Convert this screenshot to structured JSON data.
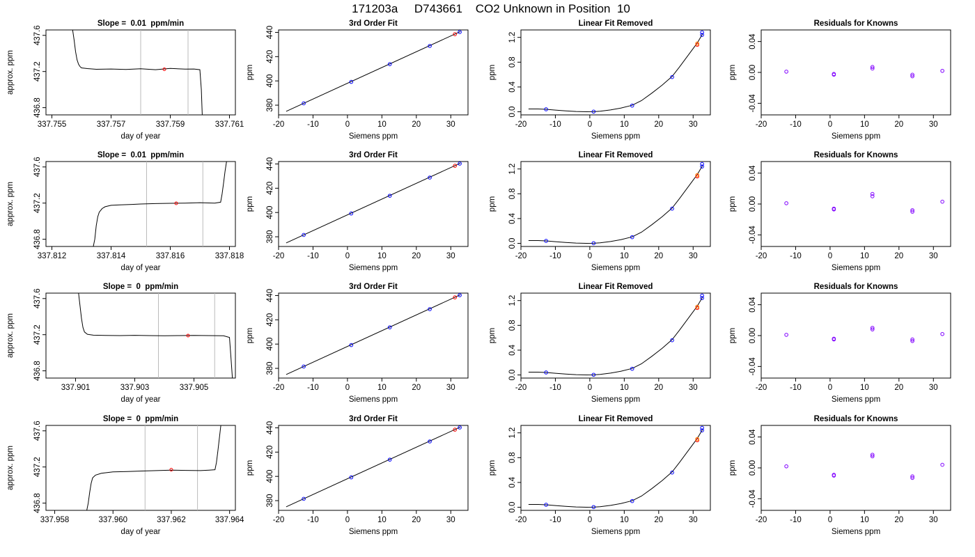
{
  "figure_title": "171203a     D743661    CO2 Unknown in Position  10",
  "colors": {
    "axis": "#000000",
    "known_point": "#0000ff",
    "unknown_point": "#ff0000",
    "alt_point": "#ff8c00",
    "residual_point": "#8000ff",
    "marker_line": "#bbbbbb"
  },
  "chart_data": [
    {
      "type": "line",
      "title": "Slope =  0.01  ppm/min",
      "xlabel": "day of year",
      "ylabel": "approx. ppm",
      "xlim": [
        337.7548,
        337.7612
      ],
      "ylim": [
        436.72,
        437.66
      ],
      "xticks": [
        337.755,
        337.757,
        337.759,
        337.761
      ],
      "xtick_labels": [
        "337.755",
        "337.757",
        "337.759",
        "337.761"
      ],
      "yticks": [
        436.8,
        437.2,
        437.6
      ],
      "ytick_labels": [
        "436.8",
        "437.2",
        "437.6"
      ],
      "markers": [
        337.758,
        337.7596
      ],
      "mid_x": 337.7588,
      "mid_y": 437.225,
      "series": [
        {
          "x": [
            337.7557,
            337.75575,
            337.7558,
            337.75585,
            337.7559,
            337.75595,
            337.756,
            337.7562,
            337.7565,
            337.757,
            337.7575,
            337.758,
            337.7585,
            337.759,
            337.7595,
            337.7598,
            337.76,
            337.76005,
            337.76008
          ],
          "y": [
            437.66,
            437.55,
            437.42,
            437.33,
            437.28,
            437.255,
            437.24,
            437.232,
            437.225,
            437.228,
            437.222,
            437.23,
            437.22,
            437.234,
            437.226,
            437.228,
            437.22,
            437.0,
            436.72
          ]
        }
      ]
    },
    {
      "type": "scatter",
      "title": "3rd Order Fit",
      "xlabel": "Siemens ppm",
      "ylabel": "ppm",
      "xlim": [
        -20,
        35
      ],
      "ylim": [
        372,
        442
      ],
      "xticks": [
        -20,
        -10,
        0,
        10,
        20,
        30
      ],
      "yticks": [
        380,
        400,
        420,
        440
      ],
      "fit_x": [
        -17.8,
        32.8
      ],
      "fit_y": [
        374.9,
        440.7
      ],
      "known_x": [
        -12.7,
        1.1,
        12.3,
        23.9,
        32.6
      ],
      "known_y": [
        381.5,
        399.2,
        413.8,
        428.8,
        440.3
      ],
      "unknown_x": [
        31.2
      ],
      "unknown_y": [
        438.5
      ]
    },
    {
      "type": "scatter",
      "title": "Linear Fit Removed",
      "xlabel": "Siemens ppm",
      "ylabel": "ppm",
      "xlim": [
        -20,
        35
      ],
      "ylim": [
        -0.05,
        1.32
      ],
      "xticks": [
        -20,
        -10,
        0,
        10,
        20,
        30
      ],
      "yticks": [
        0.0,
        0.4,
        0.8,
        1.2
      ],
      "ytick_labels": [
        "0.0",
        "0.4",
        "0.8",
        "1.2"
      ],
      "curve_x": [
        -17.8,
        -15,
        -12.7,
        -10,
        -7,
        -4,
        -1,
        1.1,
        3,
        6,
        9,
        12.3,
        15,
        18,
        21,
        23.9,
        26,
        28,
        30,
        31.2,
        32.8
      ],
      "curve_y": [
        0.045,
        0.045,
        0.04,
        0.028,
        0.015,
        0.005,
        0.0,
        0.002,
        0.008,
        0.03,
        0.06,
        0.105,
        0.18,
        0.3,
        0.43,
        0.57,
        0.72,
        0.87,
        1.02,
        1.11,
        1.26
      ],
      "known_x": [
        -12.7,
        1.1,
        12.3,
        23.9,
        32.6,
        32.6
      ],
      "known_y": [
        0.04,
        0.003,
        0.1,
        0.56,
        1.24,
        1.28
      ],
      "unknown_x": [
        31.2,
        31.2
      ],
      "unknown_y": [
        1.08,
        1.1
      ],
      "alt_x": [
        31.2
      ],
      "alt_y": [
        1.1
      ]
    },
    {
      "type": "scatter",
      "title": "Residuals for Knowns",
      "xlabel": "Siemens ppm",
      "ylabel": "ppm",
      "xlim": [
        -20,
        35
      ],
      "ylim": [
        -0.055,
        0.055
      ],
      "xticks": [
        -20,
        -10,
        0,
        10,
        20,
        30
      ],
      "yticks": [
        -0.04,
        0.0,
        0.04
      ],
      "ytick_labels": [
        "-0.04",
        "0.00",
        "0.04"
      ],
      "residual_x": [
        -12.7,
        1.1,
        1.1,
        12.3,
        12.3,
        23.9,
        23.9,
        32.6
      ],
      "residual_y": [
        0.001,
        -0.002,
        -0.003,
        0.007,
        0.005,
        -0.003,
        -0.005,
        0.002
      ]
    },
    {
      "type": "line",
      "title": "Slope =  0.01  ppm/min",
      "xlabel": "day of year",
      "ylabel": "approx. ppm",
      "xlim": [
        337.8118,
        337.8182
      ],
      "ylim": [
        436.72,
        437.66
      ],
      "xticks": [
        337.812,
        337.814,
        337.816,
        337.818
      ],
      "xtick_labels": [
        "337.812",
        "337.814",
        "337.816",
        "337.818"
      ],
      "yticks": [
        436.8,
        437.2,
        437.6
      ],
      "ytick_labels": [
        "436.8",
        "437.2",
        "437.6"
      ],
      "markers": [
        337.8152,
        337.8171
      ],
      "mid_x": 337.8162,
      "mid_y": 437.198,
      "series": [
        {
          "x": [
            337.8134,
            337.81345,
            337.8135,
            337.81355,
            337.8136,
            337.8137,
            337.8138,
            337.814,
            337.8143,
            337.8147,
            337.815,
            337.8155,
            337.816,
            337.8165,
            337.817,
            337.8175,
            337.8177,
            337.81775,
            337.8178,
            337.81785,
            337.8179
          ],
          "y": [
            436.72,
            436.8,
            436.95,
            437.05,
            437.1,
            437.14,
            437.16,
            437.175,
            437.18,
            437.185,
            437.19,
            437.195,
            437.198,
            437.2,
            437.205,
            437.2,
            437.21,
            437.3,
            437.42,
            437.55,
            437.66
          ]
        }
      ]
    },
    {
      "type": "scatter",
      "title": "3rd Order Fit",
      "xlabel": "Siemens ppm",
      "ylabel": "ppm",
      "xlim": [
        -20,
        35
      ],
      "ylim": [
        372,
        442
      ],
      "xticks": [
        -20,
        -10,
        0,
        10,
        20,
        30
      ],
      "yticks": [
        380,
        400,
        420,
        440
      ],
      "fit_x": [
        -17.8,
        32.8
      ],
      "fit_y": [
        374.9,
        440.7
      ],
      "known_x": [
        -12.7,
        1.1,
        12.3,
        23.9,
        32.6
      ],
      "known_y": [
        381.5,
        399.2,
        413.8,
        428.8,
        440.3
      ],
      "unknown_x": [
        31.2
      ],
      "unknown_y": [
        438.5
      ]
    },
    {
      "type": "scatter",
      "title": "Linear Fit Removed",
      "xlabel": "Siemens ppm",
      "ylabel": "ppm",
      "xlim": [
        -20,
        35
      ],
      "ylim": [
        -0.05,
        1.32
      ],
      "xticks": [
        -20,
        -10,
        0,
        10,
        20,
        30
      ],
      "yticks": [
        0.0,
        0.4,
        0.8,
        1.2
      ],
      "ytick_labels": [
        "0.0",
        "0.4",
        "0.8",
        "1.2"
      ],
      "curve_x": [
        -17.8,
        -15,
        -12.7,
        -10,
        -7,
        -4,
        -1,
        1.1,
        3,
        6,
        9,
        12.3,
        15,
        18,
        21,
        23.9,
        26,
        28,
        30,
        31.2,
        32.8
      ],
      "curve_y": [
        0.045,
        0.045,
        0.04,
        0.028,
        0.015,
        0.005,
        0.0,
        0.002,
        0.008,
        0.03,
        0.06,
        0.105,
        0.18,
        0.3,
        0.43,
        0.57,
        0.72,
        0.87,
        1.02,
        1.11,
        1.26
      ],
      "known_x": [
        -12.7,
        1.1,
        12.3,
        23.9,
        32.6,
        32.6
      ],
      "known_y": [
        0.04,
        0.003,
        0.1,
        0.56,
        1.24,
        1.28
      ],
      "unknown_x": [
        31.2,
        31.2
      ],
      "unknown_y": [
        1.08,
        1.1
      ],
      "alt_x": [
        31.2
      ],
      "alt_y": [
        1.1
      ]
    },
    {
      "type": "scatter",
      "title": "Residuals for Knowns",
      "xlabel": "Siemens ppm",
      "ylabel": "ppm",
      "xlim": [
        -20,
        35
      ],
      "ylim": [
        -0.055,
        0.055
      ],
      "xticks": [
        -20,
        -10,
        0,
        10,
        20,
        30
      ],
      "yticks": [
        -0.04,
        0.0,
        0.04
      ],
      "ytick_labels": [
        "-0.04",
        "0.00",
        "0.04"
      ],
      "residual_x": [
        -12.7,
        1.1,
        1.1,
        12.3,
        12.3,
        23.9,
        23.9,
        32.6
      ],
      "residual_y": [
        0.001,
        -0.006,
        -0.007,
        0.013,
        0.01,
        -0.008,
        -0.01,
        0.003
      ]
    },
    {
      "type": "line",
      "title": "Slope =  0  ppm/min",
      "xlabel": "day of year",
      "ylabel": "approx. ppm",
      "xlim": [
        337.9,
        337.9064
      ],
      "ylim": [
        436.72,
        437.66
      ],
      "xticks": [
        337.901,
        337.903,
        337.905
      ],
      "xtick_labels": [
        "337.901",
        "337.903",
        "337.905"
      ],
      "yticks": [
        436.8,
        437.2,
        437.6
      ],
      "ytick_labels": [
        "436.8",
        "437.2",
        "437.6"
      ],
      "markers": [
        337.9038,
        337.9057
      ],
      "mid_x": 337.9048,
      "mid_y": 437.19,
      "series": [
        {
          "x": [
            337.9011,
            337.90115,
            337.9012,
            337.90125,
            337.9013,
            337.9014,
            337.9016,
            337.902,
            337.9025,
            337.903,
            337.9035,
            337.904,
            337.9045,
            337.905,
            337.9055,
            337.906,
            337.9062,
            337.90625,
            337.9063
          ],
          "y": [
            437.66,
            437.52,
            437.38,
            437.28,
            437.23,
            437.205,
            437.195,
            437.192,
            437.19,
            437.193,
            437.19,
            437.188,
            437.19,
            437.192,
            437.19,
            437.188,
            437.17,
            436.95,
            436.72
          ]
        }
      ]
    },
    {
      "type": "scatter",
      "title": "3rd Order Fit",
      "xlabel": "Siemens ppm",
      "ylabel": "ppm",
      "xlim": [
        -20,
        35
      ],
      "ylim": [
        372,
        442
      ],
      "xticks": [
        -20,
        -10,
        0,
        10,
        20,
        30
      ],
      "yticks": [
        380,
        400,
        420,
        440
      ],
      "fit_x": [
        -17.8,
        32.8
      ],
      "fit_y": [
        374.9,
        440.7
      ],
      "known_x": [
        -12.7,
        1.1,
        12.3,
        23.9,
        32.6
      ],
      "known_y": [
        381.5,
        399.2,
        413.8,
        428.8,
        440.3
      ],
      "unknown_x": [
        31.2
      ],
      "unknown_y": [
        438.5
      ]
    },
    {
      "type": "scatter",
      "title": "Linear Fit Removed",
      "xlabel": "Siemens ppm",
      "ylabel": "ppm",
      "xlim": [
        -20,
        35
      ],
      "ylim": [
        -0.05,
        1.32
      ],
      "xticks": [
        -20,
        -10,
        0,
        10,
        20,
        30
      ],
      "yticks": [
        0.0,
        0.4,
        0.8,
        1.2
      ],
      "ytick_labels": [
        "0.0",
        "0.4",
        "0.8",
        "1.2"
      ],
      "curve_x": [
        -17.8,
        -15,
        -12.7,
        -10,
        -7,
        -4,
        -1,
        1.1,
        3,
        6,
        9,
        12.3,
        15,
        18,
        21,
        23.9,
        26,
        28,
        30,
        31.2,
        32.8
      ],
      "curve_y": [
        0.045,
        0.045,
        0.04,
        0.028,
        0.015,
        0.005,
        0.0,
        0.002,
        0.008,
        0.03,
        0.06,
        0.105,
        0.18,
        0.3,
        0.43,
        0.57,
        0.72,
        0.87,
        1.02,
        1.11,
        1.26
      ],
      "known_x": [
        -12.7,
        1.1,
        12.3,
        23.9,
        32.6,
        32.6
      ],
      "known_y": [
        0.04,
        0.003,
        0.1,
        0.56,
        1.24,
        1.28
      ],
      "unknown_x": [
        31.2,
        31.2
      ],
      "unknown_y": [
        1.08,
        1.1
      ],
      "alt_x": [
        31.2
      ],
      "alt_y": [
        1.1
      ]
    },
    {
      "type": "scatter",
      "title": "Residuals for Knowns",
      "xlabel": "Siemens ppm",
      "ylabel": "ppm",
      "xlim": [
        -20,
        35
      ],
      "ylim": [
        -0.055,
        0.055
      ],
      "xticks": [
        -20,
        -10,
        0,
        10,
        20,
        30
      ],
      "yticks": [
        -0.04,
        0.0,
        0.04
      ],
      "ytick_labels": [
        "-0.04",
        "0.00",
        "0.04"
      ],
      "residual_x": [
        -12.7,
        1.1,
        1.1,
        12.3,
        12.3,
        23.9,
        23.9,
        32.6
      ],
      "residual_y": [
        0.001,
        -0.004,
        -0.005,
        0.01,
        0.008,
        -0.005,
        -0.007,
        0.002
      ]
    },
    {
      "type": "line",
      "title": "Slope =  0  ppm/min",
      "xlabel": "day of year",
      "ylabel": "approx. ppm",
      "xlim": [
        337.9577,
        337.9642
      ],
      "ylim": [
        436.72,
        437.66
      ],
      "xticks": [
        337.958,
        337.96,
        337.962,
        337.964
      ],
      "xtick_labels": [
        "337.958",
        "337.960",
        "337.962",
        "337.964"
      ],
      "yticks": [
        436.8,
        437.2,
        437.6
      ],
      "ytick_labels": [
        "436.8",
        "437.2",
        "437.6"
      ],
      "markers": [
        337.9611,
        337.9629
      ],
      "mid_x": 337.962,
      "mid_y": 437.17,
      "series": [
        {
          "x": [
            337.9591,
            337.95915,
            337.9592,
            337.95925,
            337.9593,
            337.9594,
            337.9596,
            337.96,
            337.9605,
            337.961,
            337.9615,
            337.962,
            337.9625,
            337.963,
            337.9633,
            337.9635,
            337.96355,
            337.9636,
            337.96365,
            337.9637
          ],
          "y": [
            436.72,
            436.8,
            436.92,
            437.02,
            437.08,
            437.11,
            437.13,
            437.145,
            437.15,
            437.155,
            437.16,
            437.165,
            437.162,
            437.16,
            437.165,
            437.17,
            437.25,
            437.38,
            437.52,
            437.66
          ]
        }
      ]
    },
    {
      "type": "scatter",
      "title": "3rd Order Fit",
      "xlabel": "Siemens ppm",
      "ylabel": "ppm",
      "xlim": [
        -20,
        35
      ],
      "ylim": [
        372,
        442
      ],
      "xticks": [
        -20,
        -10,
        0,
        10,
        20,
        30
      ],
      "yticks": [
        380,
        400,
        420,
        440
      ],
      "fit_x": [
        -17.8,
        32.8
      ],
      "fit_y": [
        374.9,
        440.7
      ],
      "known_x": [
        -12.7,
        1.1,
        12.3,
        23.9,
        32.6
      ],
      "known_y": [
        381.5,
        399.2,
        413.8,
        428.8,
        440.3
      ],
      "unknown_x": [
        31.2
      ],
      "unknown_y": [
        438.5
      ]
    },
    {
      "type": "scatter",
      "title": "Linear Fit Removed",
      "xlabel": "Siemens ppm",
      "ylabel": "ppm",
      "xlim": [
        -20,
        35
      ],
      "ylim": [
        -0.05,
        1.32
      ],
      "xticks": [
        -20,
        -10,
        0,
        10,
        20,
        30
      ],
      "yticks": [
        0.0,
        0.4,
        0.8,
        1.2
      ],
      "ytick_labels": [
        "0.0",
        "0.4",
        "0.8",
        "1.2"
      ],
      "curve_x": [
        -17.8,
        -15,
        -12.7,
        -10,
        -7,
        -4,
        -1,
        1.1,
        3,
        6,
        9,
        12.3,
        15,
        18,
        21,
        23.9,
        26,
        28,
        30,
        31.2,
        32.8
      ],
      "curve_y": [
        0.045,
        0.045,
        0.04,
        0.028,
        0.015,
        0.005,
        0.0,
        0.002,
        0.008,
        0.03,
        0.06,
        0.105,
        0.18,
        0.3,
        0.43,
        0.57,
        0.72,
        0.87,
        1.02,
        1.11,
        1.26
      ],
      "known_x": [
        -12.7,
        1.1,
        12.3,
        23.9,
        32.6,
        32.6
      ],
      "known_y": [
        0.04,
        0.003,
        0.1,
        0.56,
        1.24,
        1.28
      ],
      "unknown_x": [
        31.2,
        31.2
      ],
      "unknown_y": [
        1.08,
        1.1
      ],
      "alt_x": [
        31.2
      ],
      "alt_y": [
        1.1
      ]
    },
    {
      "type": "scatter",
      "title": "Residuals for Knowns",
      "xlabel": "Siemens ppm",
      "ylabel": "ppm",
      "xlim": [
        -20,
        35
      ],
      "ylim": [
        -0.055,
        0.055
      ],
      "xticks": [
        -20,
        -10,
        0,
        10,
        20,
        30
      ],
      "yticks": [
        -0.04,
        0.0,
        0.04
      ],
      "ytick_labels": [
        "-0.04",
        "0.00",
        "0.04"
      ],
      "residual_x": [
        -12.7,
        1.1,
        1.1,
        12.3,
        12.3,
        23.9,
        23.9,
        32.6
      ],
      "residual_y": [
        0.002,
        -0.009,
        -0.01,
        0.017,
        0.015,
        -0.011,
        -0.013,
        0.004
      ]
    }
  ]
}
